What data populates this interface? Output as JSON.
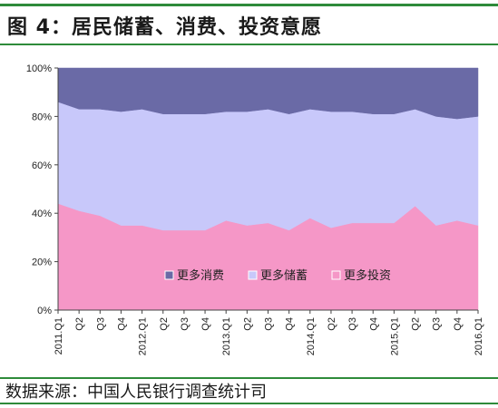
{
  "header": {
    "title": "图 4：居民储蓄、消费、投资意愿"
  },
  "footer": {
    "source": "数据来源：中国人民银行调查统计司"
  },
  "chart_data": {
    "type": "area",
    "stacked": true,
    "categories": [
      "2011.Q1",
      "Q2",
      "Q3",
      "Q4",
      "2012.Q1",
      "Q2",
      "Q3",
      "Q4",
      "2013.Q1",
      "Q2",
      "Q3",
      "Q4",
      "2014.Q1",
      "Q2",
      "Q3",
      "Q4",
      "2015.Q1",
      "Q2",
      "Q3",
      "Q4",
      "2016.Q1"
    ],
    "series": [
      {
        "name": "更多投资",
        "color": "#f597c7",
        "values": [
          44,
          41,
          39,
          35,
          35,
          33,
          33,
          33,
          37,
          35,
          36,
          33,
          38,
          34,
          36,
          36,
          36,
          43,
          35,
          37,
          35
        ]
      },
      {
        "name": "更多储蓄",
        "color": "#c8c8fa",
        "values": [
          42,
          42,
          44,
          47,
          48,
          48,
          48,
          48,
          45,
          47,
          47,
          48,
          45,
          48,
          46,
          45,
          45,
          40,
          45,
          42,
          45
        ]
      },
      {
        "name": "更多消费",
        "color": "#6a6aa6",
        "values": [
          14,
          17,
          17,
          18,
          17,
          19,
          19,
          19,
          18,
          18,
          17,
          19,
          17,
          18,
          18,
          19,
          19,
          17,
          20,
          21,
          20
        ]
      }
    ],
    "legend_order": [
      "更多消费",
      "更多储蓄",
      "更多投资"
    ],
    "y_ticks": [
      "0%",
      "20%",
      "40%",
      "60%",
      "80%",
      "100%"
    ],
    "ylim": [
      0,
      100
    ],
    "legend_position": "bottom-center",
    "grid": false
  }
}
